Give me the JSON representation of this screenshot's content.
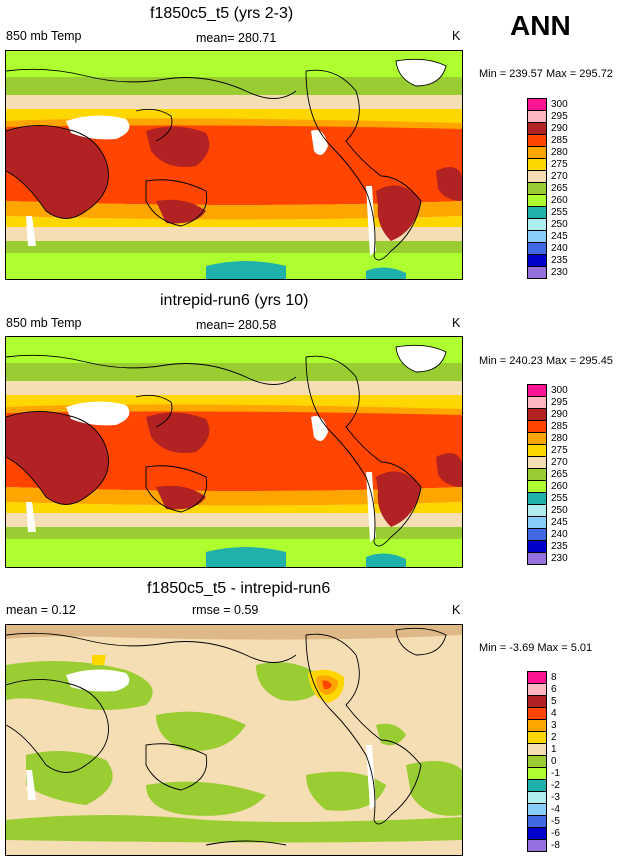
{
  "season": "ANN",
  "panels": [
    {
      "title": "f1850c5_t5 (yrs 2-3)",
      "left_label": "850 mb Temp",
      "center_label": "mean= 280.71",
      "units": "K",
      "minmax": "Min = 239.57 Max = 295.72",
      "colorbar": {
        "levels": [
          "300",
          "295",
          "290",
          "285",
          "280",
          "275",
          "270",
          "265",
          "260",
          "255",
          "250",
          "245",
          "240",
          "235",
          "230"
        ],
        "colors": [
          "#ff1493",
          "#ffb6c1",
          "#b22222",
          "#ff4500",
          "#ffa500",
          "#ffd700",
          "#f5deb3",
          "#9acd32",
          "#adff2f",
          "#20b2aa",
          "#afeeee",
          "#87cefa",
          "#4169e1",
          "#0000cd",
          "#9370db"
        ]
      }
    },
    {
      "title": "intrepid-run6 (yrs 10)",
      "left_label": "850 mb Temp",
      "center_label": "mean= 280.58",
      "units": "K",
      "minmax": "Min = 240.23 Max = 295.45",
      "colorbar": {
        "levels": [
          "300",
          "295",
          "290",
          "285",
          "280",
          "275",
          "270",
          "265",
          "260",
          "255",
          "250",
          "245",
          "240",
          "235",
          "230"
        ],
        "colors": [
          "#ff1493",
          "#ffb6c1",
          "#b22222",
          "#ff4500",
          "#ffa500",
          "#ffd700",
          "#f5deb3",
          "#9acd32",
          "#adff2f",
          "#20b2aa",
          "#afeeee",
          "#87cefa",
          "#4169e1",
          "#0000cd",
          "#9370db"
        ]
      }
    },
    {
      "title": "f1850c5_t5 - intrepid-run6",
      "left_label": "mean =  0.12",
      "center_label": "rmse =  0.59",
      "units": "K",
      "minmax": "Min =  -3.69 Max =   5.01",
      "colorbar": {
        "levels": [
          "8",
          "6",
          "5",
          "4",
          "3",
          "2",
          "1",
          "0",
          "-1",
          "-2",
          "-3",
          "-4",
          "-5",
          "-6",
          "-8"
        ],
        "colors": [
          "#ff1493",
          "#ffb6c1",
          "#b22222",
          "#ff4500",
          "#ffa500",
          "#ffd700",
          "#f5deb3",
          "#9acd32",
          "#adff2f",
          "#20b2aa",
          "#afeeee",
          "#87cefa",
          "#4169e1",
          "#0000cd",
          "#9370db"
        ]
      }
    }
  ],
  "map_colors": {
    "missing": "#ffffff",
    "c300": "#ff1493",
    "c295": "#ffb6c1",
    "c290": "#b22222",
    "c285": "#ff4500",
    "c280": "#ffa500",
    "c275": "#ffd700",
    "c270": "#f5deb3",
    "c265": "#9acd32",
    "c260": "#adff2f",
    "c255": "#20b2aa",
    "c250": "#afeeee"
  }
}
